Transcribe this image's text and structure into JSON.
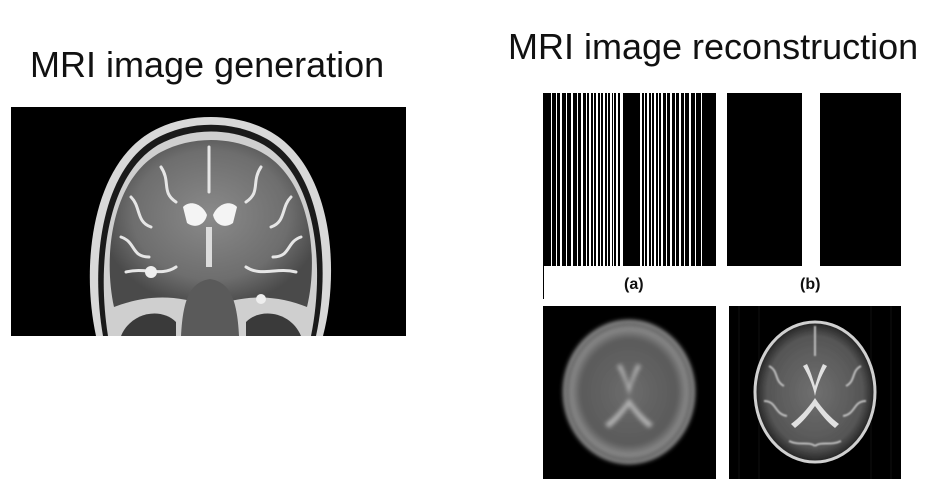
{
  "titles": {
    "generation": "MRI image generation",
    "reconstruction": "MRI image reconstruction"
  },
  "labels": {
    "a": "(a)",
    "b": "(b)"
  },
  "colors": {
    "background": "#ffffff",
    "panel": "#000000",
    "text": "#111111"
  }
}
